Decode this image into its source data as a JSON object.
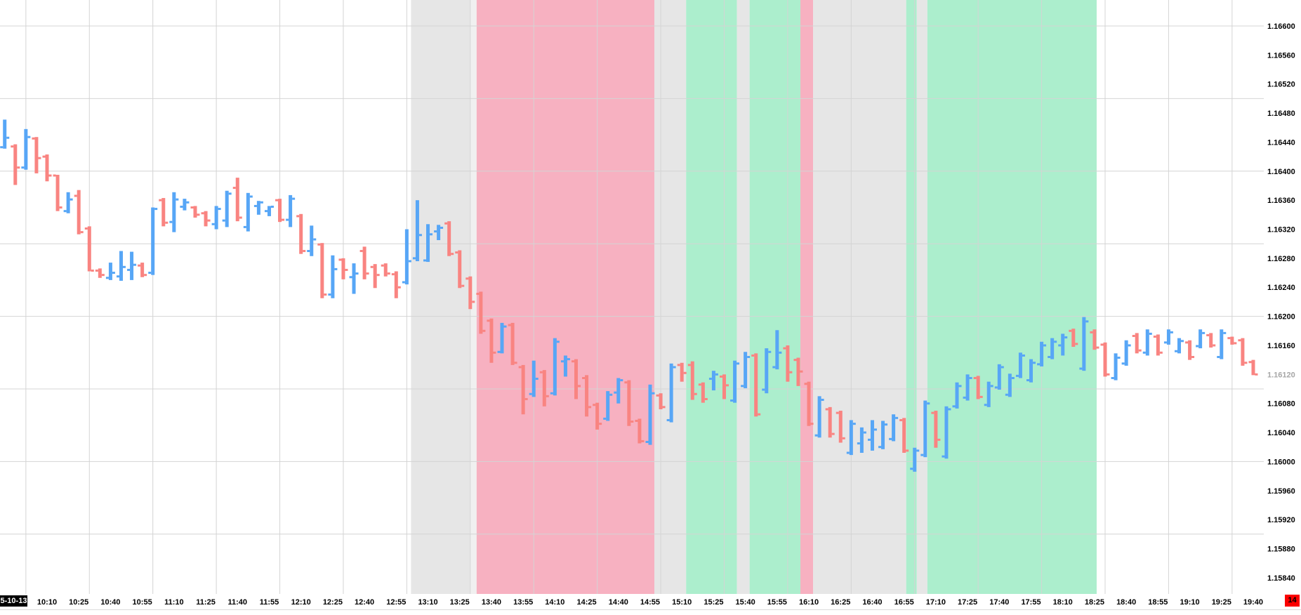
{
  "chart_data": {
    "type": "ohlc-bar",
    "title": "",
    "timeframe_minutes": 5,
    "session_date_label": "5-10-13",
    "corner_badge": "14",
    "current_price": "1.16120",
    "y_axis": {
      "side": "right",
      "tick_labels": [
        "1.16600",
        "1.16560",
        "1.16520",
        "1.16480",
        "1.16440",
        "1.16400",
        "1.16360",
        "1.16320",
        "1.16280",
        "1.16240",
        "1.16200",
        "1.16160",
        "1.16120",
        "1.16080",
        "1.16040",
        "1.16000",
        "1.15960",
        "1.15920",
        "1.15880",
        "1.15840"
      ],
      "gridline_prices": [
        1.166,
        1.165,
        1.164,
        1.163,
        1.162,
        1.161,
        1.16,
        1.159
      ],
      "range_top": 1.16636,
      "range_bottom": 1.15818
    },
    "x_axis": {
      "tick_labels": [
        "10:10",
        "10:25",
        "10:40",
        "10:55",
        "11:10",
        "11:25",
        "11:40",
        "11:55",
        "12:10",
        "12:25",
        "12:40",
        "12:55",
        "13:10",
        "13:25",
        "13:40",
        "13:55",
        "14:10",
        "14:25",
        "14:40",
        "14:55",
        "15:10",
        "15:25",
        "15:40",
        "15:55",
        "16:10",
        "16:25",
        "16:40",
        "16:55",
        "17:10",
        "17:25",
        "17:40",
        "17:55",
        "18:10",
        "18:25",
        "18:40",
        "18:55",
        "19:10",
        "19:25",
        "19:40"
      ],
      "gridline_times": [
        "10:00",
        "10:30",
        "11:00",
        "11:30",
        "12:00",
        "12:30",
        "13:00",
        "13:30",
        "14:00",
        "14:30",
        "15:00",
        "15:30",
        "16:00",
        "16:30",
        "17:00",
        "17:30",
        "18:00",
        "18:30",
        "19:00",
        "19:30"
      ],
      "start": "09:50",
      "end": "19:40"
    },
    "bands": [
      {
        "start": "13:02",
        "end": "13:30",
        "color": "gray"
      },
      {
        "start": "13:30",
        "end": "13:33",
        "color": "gray_light"
      },
      {
        "start": "13:33",
        "end": "14:57",
        "color": "pink"
      },
      {
        "start": "14:57",
        "end": "15:12",
        "color": "gray"
      },
      {
        "start": "15:12",
        "end": "15:36",
        "color": "green"
      },
      {
        "start": "15:36",
        "end": "15:42",
        "color": "gray"
      },
      {
        "start": "15:42",
        "end": "16:06",
        "color": "green"
      },
      {
        "start": "16:06",
        "end": "16:12",
        "color": "pink"
      },
      {
        "start": "16:12",
        "end": "16:56",
        "color": "gray"
      },
      {
        "start": "16:56",
        "end": "17:01",
        "color": "green"
      },
      {
        "start": "17:01",
        "end": "17:06",
        "color": "gray"
      },
      {
        "start": "17:06",
        "end": "18:26",
        "color": "green"
      }
    ],
    "bars_format": [
      "time",
      "open",
      "high",
      "low",
      "close"
    ],
    "bars": [
      [
        "09:50",
        1.16433,
        1.16471,
        1.16431,
        1.16446
      ],
      [
        "09:55",
        1.16434,
        1.16437,
        1.16381,
        1.16405
      ],
      [
        "10:00",
        1.16405,
        1.16458,
        1.16402,
        1.16447
      ],
      [
        "10:05",
        1.16445,
        1.16447,
        1.16397,
        1.16418
      ],
      [
        "10:10",
        1.1642,
        1.16423,
        1.16386,
        1.16394
      ],
      [
        "10:15",
        1.16394,
        1.16395,
        1.16345,
        1.1635
      ],
      [
        "10:20",
        1.16345,
        1.16371,
        1.16342,
        1.16361
      ],
      [
        "10:25",
        1.16366,
        1.16374,
        1.16313,
        1.16316
      ],
      [
        "10:30",
        1.16321,
        1.16324,
        1.16262,
        1.16263
      ],
      [
        "10:35",
        1.16263,
        1.16266,
        1.16253,
        1.16257
      ],
      [
        "10:40",
        1.16253,
        1.16274,
        1.1625,
        1.1626
      ],
      [
        "10:45",
        1.16255,
        1.1629,
        1.16249,
        1.16268
      ],
      [
        "10:50",
        1.16264,
        1.16289,
        1.1625,
        1.16271
      ],
      [
        "10:55",
        1.1627,
        1.16274,
        1.16254,
        1.16257
      ],
      [
        "11:00",
        1.1626,
        1.1635,
        1.16257,
        1.16348
      ],
      [
        "11:05",
        1.1636,
        1.16363,
        1.16324,
        1.16329
      ],
      [
        "11:10",
        1.1633,
        1.16371,
        1.16316,
        1.16361
      ],
      [
        "11:15",
        1.16351,
        1.16362,
        1.16346,
        1.16357
      ],
      [
        "11:20",
        1.1635,
        1.16352,
        1.16336,
        1.1634
      ],
      [
        "11:25",
        1.16342,
        1.16345,
        1.16324,
        1.16332
      ],
      [
        "11:30",
        1.16327,
        1.16352,
        1.1632,
        1.16348
      ],
      [
        "11:35",
        1.16332,
        1.16373,
        1.16323,
        1.16369
      ],
      [
        "11:40",
        1.16377,
        1.16391,
        1.16331,
        1.16336
      ],
      [
        "11:45",
        1.16323,
        1.1637,
        1.16317,
        1.16365
      ],
      [
        "11:50",
        1.16352,
        1.16359,
        1.1634,
        1.16357
      ],
      [
        "11:55",
        1.16345,
        1.16352,
        1.16338,
        1.16351
      ],
      [
        "12:00",
        1.1636,
        1.16362,
        1.1633,
        1.16333
      ],
      [
        "12:05",
        1.16333,
        1.16367,
        1.16323,
        1.16362
      ],
      [
        "12:10",
        1.16338,
        1.16341,
        1.16286,
        1.1629
      ],
      [
        "12:15",
        1.1629,
        1.16325,
        1.16283,
        1.16306
      ],
      [
        "12:20",
        1.16299,
        1.16301,
        1.16225,
        1.1623
      ],
      [
        "12:25",
        1.1623,
        1.16284,
        1.16225,
        1.16265
      ],
      [
        "12:30",
        1.16278,
        1.1628,
        1.16251,
        1.16264
      ],
      [
        "12:35",
        1.16254,
        1.16273,
        1.16231,
        1.16259
      ],
      [
        "12:40",
        1.1629,
        1.16296,
        1.16251,
        1.16259
      ],
      [
        "12:45",
        1.16268,
        1.16272,
        1.16239,
        1.16257
      ],
      [
        "12:50",
        1.1627,
        1.16273,
        1.16255,
        1.16259
      ],
      [
        "12:55",
        1.16258,
        1.16262,
        1.16225,
        1.1624
      ],
      [
        "13:00",
        1.16247,
        1.1632,
        1.16244,
        1.16276
      ],
      [
        "13:05",
        1.1628,
        1.1636,
        1.16276,
        1.16312
      ],
      [
        "13:10",
        1.16277,
        1.16327,
        1.16275,
        1.16313
      ],
      [
        "13:15",
        1.16317,
        1.16326,
        1.16305,
        1.16322
      ],
      [
        "13:20",
        1.16328,
        1.16331,
        1.16283,
        1.16286
      ],
      [
        "13:25",
        1.16288,
        1.16291,
        1.16239,
        1.16242
      ],
      [
        "13:30",
        1.16252,
        1.16255,
        1.1621,
        1.1622
      ],
      [
        "13:35",
        1.16231,
        1.16234,
        1.16176,
        1.1618
      ],
      [
        "13:40",
        1.16194,
        1.16197,
        1.16136,
        1.1615
      ],
      [
        "13:45",
        1.16151,
        1.16191,
        1.16149,
        1.16186
      ],
      [
        "13:50",
        1.16188,
        1.16191,
        1.16133,
        1.16136
      ],
      [
        "13:55",
        1.1613,
        1.16133,
        1.16065,
        1.16086
      ],
      [
        "14:00",
        1.16093,
        1.16139,
        1.16089,
        1.16114
      ],
      [
        "14:05",
        1.16123,
        1.16126,
        1.16076,
        1.1609
      ],
      [
        "14:10",
        1.16094,
        1.1617,
        1.16091,
        1.16165
      ],
      [
        "14:15",
        1.16138,
        1.16146,
        1.16117,
        1.16141
      ],
      [
        "14:20",
        1.16138,
        1.16141,
        1.16086,
        1.16104
      ],
      [
        "14:25",
        1.16115,
        1.16119,
        1.16062,
        1.16075
      ],
      [
        "14:30",
        1.16078,
        1.16081,
        1.16044,
        1.16052
      ],
      [
        "14:35",
        1.16059,
        1.16097,
        1.16056,
        1.16092
      ],
      [
        "14:40",
        1.16095,
        1.16115,
        1.1608,
        1.16112
      ],
      [
        "14:45",
        1.16109,
        1.16112,
        1.16049,
        1.16055
      ],
      [
        "14:50",
        1.16056,
        1.16059,
        1.16025,
        1.16028
      ],
      [
        "14:55",
        1.16027,
        1.16106,
        1.16023,
        1.16094
      ],
      [
        "15:00",
        1.16091,
        1.16094,
        1.16072,
        1.16075
      ],
      [
        "15:05",
        1.16057,
        1.16135,
        1.16054,
        1.1613
      ],
      [
        "15:10",
        1.16133,
        1.16136,
        1.1611,
        1.16122
      ],
      [
        "15:15",
        1.16133,
        1.16138,
        1.16085,
        1.16093
      ],
      [
        "15:20",
        1.16106,
        1.16109,
        1.16081,
        1.16086
      ],
      [
        "15:25",
        1.16114,
        1.16125,
        1.16098,
        1.1612
      ],
      [
        "15:30",
        1.16117,
        1.1612,
        1.16086,
        1.16105
      ],
      [
        "15:35",
        1.16084,
        1.16139,
        1.16081,
        1.16135
      ],
      [
        "15:40",
        1.16104,
        1.16151,
        1.16101,
        1.16144
      ],
      [
        "15:45",
        1.16146,
        1.16149,
        1.16062,
        1.16065
      ],
      [
        "15:50",
        1.16099,
        1.16156,
        1.16094,
        1.16151
      ],
      [
        "15:55",
        1.1613,
        1.16181,
        1.16127,
        1.1615
      ],
      [
        "16:00",
        1.16156,
        1.1616,
        1.1611,
        1.16123
      ],
      [
        "16:05",
        1.1614,
        1.16143,
        1.16104,
        1.16124
      ],
      [
        "16:10",
        1.16107,
        1.1611,
        1.16049,
        1.16052
      ],
      [
        "16:15",
        1.16036,
        1.1609,
        1.16033,
        1.16085
      ],
      [
        "16:20",
        1.16072,
        1.16075,
        1.16033,
        1.16038
      ],
      [
        "16:25",
        1.16067,
        1.1607,
        1.16026,
        1.16032
      ],
      [
        "16:30",
        1.16012,
        1.16057,
        1.16009,
        1.16052
      ],
      [
        "16:35",
        1.16025,
        1.16047,
        1.16012,
        1.1604
      ],
      [
        "16:40",
        1.1603,
        1.16057,
        1.16015,
        1.16044
      ],
      [
        "16:45",
        1.1602,
        1.16056,
        1.16017,
        1.16051
      ],
      [
        "16:50",
        1.16031,
        1.16065,
        1.16028,
        1.1606
      ],
      [
        "16:55",
        1.16057,
        1.1606,
        1.16012,
        1.16015
      ],
      [
        "17:00",
        1.1599,
        1.16019,
        1.15986,
        1.16015
      ],
      [
        "17:05",
        1.16009,
        1.16084,
        1.16006,
        1.1608
      ],
      [
        "17:10",
        1.16067,
        1.1607,
        1.16019,
        1.1603
      ],
      [
        "17:15",
        1.16007,
        1.16076,
        1.16004,
        1.16072
      ],
      [
        "17:20",
        1.16076,
        1.16109,
        1.16073,
        1.16104
      ],
      [
        "17:25",
        1.16088,
        1.1612,
        1.16084,
        1.16115
      ],
      [
        "17:30",
        1.16115,
        1.16118,
        1.16086,
        1.16089
      ],
      [
        "17:35",
        1.16078,
        1.1611,
        1.16075,
        1.16104
      ],
      [
        "17:40",
        1.16102,
        1.16134,
        1.16099,
        1.1613
      ],
      [
        "17:45",
        1.16092,
        1.16121,
        1.16089,
        1.16115
      ],
      [
        "17:50",
        1.16118,
        1.1615,
        1.16115,
        1.16146
      ],
      [
        "17:55",
        1.16112,
        1.16141,
        1.16109,
        1.16136
      ],
      [
        "18:00",
        1.16134,
        1.16165,
        1.16131,
        1.1616
      ],
      [
        "18:05",
        1.16144,
        1.1617,
        1.16141,
        1.16165
      ],
      [
        "18:10",
        1.1616,
        1.16176,
        1.16146,
        1.16171
      ],
      [
        "18:15",
        1.1618,
        1.16183,
        1.16158,
        1.16162
      ],
      [
        "18:20",
        1.16128,
        1.16199,
        1.16125,
        1.16193
      ],
      [
        "18:25",
        1.16178,
        1.16182,
        1.16154,
        1.16157
      ],
      [
        "18:30",
        1.16161,
        1.16164,
        1.16117,
        1.1612
      ],
      [
        "18:35",
        1.16115,
        1.16149,
        1.16112,
        1.16143
      ],
      [
        "18:40",
        1.16135,
        1.16167,
        1.16132,
        1.1616
      ],
      [
        "18:45",
        1.16173,
        1.16177,
        1.16149,
        1.16153
      ],
      [
        "18:50",
        1.1615,
        1.16182,
        1.16146,
        1.16176
      ],
      [
        "18:55",
        1.16172,
        1.16175,
        1.16146,
        1.1615
      ],
      [
        "19:00",
        1.16164,
        1.16182,
        1.16161,
        1.16178
      ],
      [
        "19:05",
        1.16152,
        1.1617,
        1.16149,
        1.16166
      ],
      [
        "19:10",
        1.16164,
        1.16167,
        1.1614,
        1.16144
      ],
      [
        "19:15",
        1.16159,
        1.16182,
        1.16156,
        1.16177
      ],
      [
        "19:20",
        1.16174,
        1.16177,
        1.16157,
        1.1616
      ],
      [
        "19:25",
        1.16144,
        1.16182,
        1.16141,
        1.16177
      ],
      [
        "19:30",
        1.1617,
        1.16172,
        1.16161,
        1.16163
      ],
      [
        "19:35",
        1.16167,
        1.1617,
        1.16132,
        1.16136
      ],
      [
        "19:40",
        1.16137,
        1.1614,
        1.16119,
        1.1612
      ]
    ],
    "legend_position": "none",
    "grid": true,
    "colors": {
      "up": "#57a6f6",
      "down": "#f98481",
      "band_pink": "#f7b1c1",
      "band_green": "#aceecd",
      "band_gray": "#e6e6e6",
      "band_gray_light": "#f0f0f0",
      "grid": "#d4d4d4",
      "axis_text": "#000000",
      "current_price_text": "#a6a6a6",
      "separator": "#dcdcdc",
      "badge_bg": "#fb0000",
      "badge_text": "#000000",
      "date_box_bg": "#000000",
      "date_box_text": "#ffffff"
    }
  }
}
